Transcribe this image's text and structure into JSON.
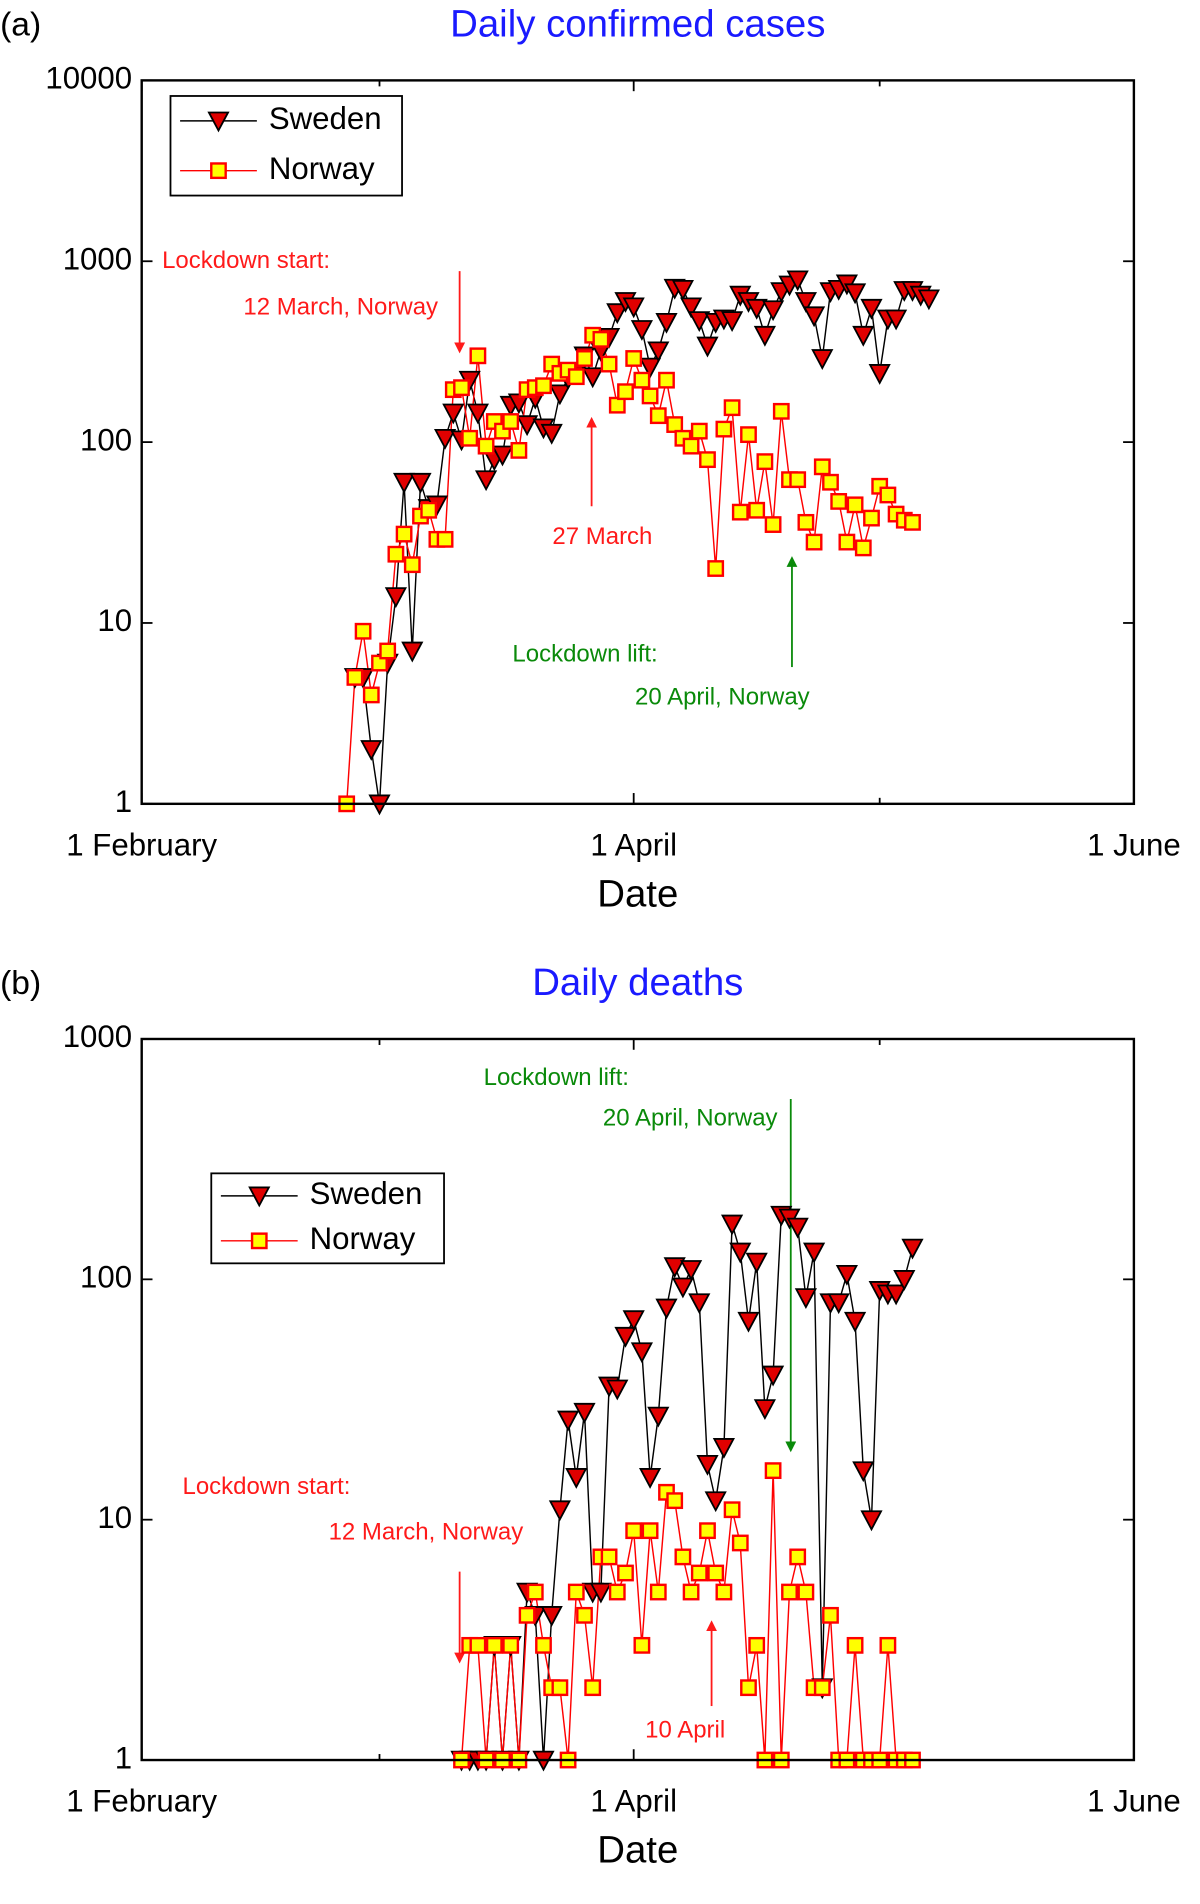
{
  "chart_data": [
    {
      "type": "line",
      "label": "(a)",
      "title": "Daily confirmed cases",
      "xlabel": "Date",
      "log_y": true,
      "legend": "upper left",
      "xlim": [
        "1 February",
        "1 June"
      ],
      "xticks": [
        "1 February",
        "1 April",
        "1 June"
      ],
      "xminor": [
        "1 March",
        "1 May"
      ],
      "ylim": [
        1,
        10000
      ],
      "yticks": [
        1,
        10,
        100,
        1000,
        10000
      ],
      "x": [
        "26 February",
        "27 February",
        "28 February",
        "29 February",
        "1 March",
        "2 March",
        "3 March",
        "4 March",
        "5 March",
        "6 March",
        "7 March",
        "8 March",
        "9 March",
        "10 March",
        "11 March",
        "12 March",
        "13 March",
        "14 March",
        "15 March",
        "16 March",
        "17 March",
        "18 March",
        "19 March",
        "20 March",
        "21 March",
        "22 March",
        "23 March",
        "24 March",
        "25 March",
        "26 March",
        "27 March",
        "28 March",
        "29 March",
        "30 March",
        "31 March",
        "1 April",
        "2 April",
        "3 April",
        "4 April",
        "5 April",
        "6 April",
        "7 April",
        "8 April",
        "9 April",
        "10 April",
        "11 April",
        "12 April",
        "13 April",
        "14 April",
        "15 April",
        "16 April",
        "17 April",
        "18 April",
        "19 April",
        "20 April",
        "21 April",
        "22 April",
        "23 April",
        "24 April",
        "25 April",
        "26 April",
        "27 April",
        "28 April",
        "29 April",
        "30 April",
        "1 May",
        "2 May",
        "3 May",
        "4 May",
        "5 May",
        "6 May",
        "7 May"
      ],
      "series": [
        {
          "name": "Sweden",
          "marker": "triangle-down",
          "color": "#000000",
          "marker_fill": "#e00000",
          "values": [
            null,
            5,
            5,
            2,
            1,
            6,
            14,
            60,
            7,
            60,
            43,
            45,
            105,
            145,
            103,
            220,
            145,
            62,
            80,
            85,
            160,
            165,
            125,
            175,
            120,
            112,
            185,
            225,
            240,
            300,
            230,
            320,
            380,
            520,
            600,
            560,
            420,
            260,
            320,
            460,
            710,
            700,
            560,
            470,
            340,
            460,
            480,
            470,
            650,
            600,
            550,
            390,
            540,
            680,
            740,
            790,
            600,
            500,
            290,
            680,
            700,
            750,
            670,
            390,
            550,
            240,
            480,
            480,
            690,
            690,
            650,
            620
          ]
        },
        {
          "name": "Norway",
          "marker": "square",
          "color": "#ff0000",
          "marker_fill": "#ffff00",
          "values": [
            1,
            5,
            9,
            4,
            6,
            7,
            24,
            31,
            21,
            39,
            42,
            29,
            29,
            195,
            200,
            105,
            300,
            95,
            130,
            115,
            130,
            90,
            195,
            200,
            205,
            270,
            240,
            250,
            230,
            290,
            390,
            370,
            270,
            160,
            190,
            290,
            220,
            180,
            140,
            220,
            125,
            105,
            95,
            115,
            80,
            20,
            118,
            155,
            41,
            110,
            42,
            78,
            35,
            148,
            62,
            62,
            36,
            28,
            73,
            60,
            47,
            28,
            45,
            26,
            38,
            57,
            51,
            40,
            37,
            36,
            null,
            null
          ]
        }
      ],
      "annotations": [
        "Lockdown start:",
        "12 March, Norway",
        "27 March",
        "Lockdown lift:",
        "20 April, Norway"
      ]
    },
    {
      "type": "line",
      "label": "(b)",
      "title": "Daily deaths",
      "xlabel": "Date",
      "log_y": true,
      "legend": "upper left",
      "xlim": [
        "1 February",
        "1 June"
      ],
      "xticks": [
        "1 February",
        "1 April",
        "1 June"
      ],
      "xminor": [
        "1 March",
        "1 May"
      ],
      "ylim": [
        1,
        1000
      ],
      "yticks": [
        1,
        10,
        100,
        1000
      ],
      "x": [
        "11 March",
        "12 March",
        "13 March",
        "14 March",
        "15 March",
        "16 March",
        "17 March",
        "18 March",
        "19 March",
        "20 March",
        "21 March",
        "22 March",
        "23 March",
        "24 March",
        "25 March",
        "26 March",
        "27 March",
        "28 March",
        "29 March",
        "30 March",
        "31 March",
        "1 April",
        "2 April",
        "3 April",
        "4 April",
        "5 April",
        "6 April",
        "7 April",
        "8 April",
        "9 April",
        "10 April",
        "11 April",
        "12 April",
        "13 April",
        "14 April",
        "15 April",
        "16 April",
        "17 April",
        "18 April",
        "19 April",
        "20 April",
        "21 April",
        "22 April",
        "23 April",
        "24 April",
        "25 April",
        "26 April",
        "27 April",
        "28 April",
        "29 April",
        "30 April",
        "1 May",
        "2 May",
        "3 May",
        "4 May",
        "5 May"
      ],
      "series": [
        {
          "name": "Sweden",
          "marker": "triangle-down",
          "color": "#000000",
          "marker_fill": "#e00000",
          "values": [
            1,
            1,
            1,
            1,
            3,
            1,
            3,
            1,
            5,
            4,
            1,
            4,
            11,
            26,
            15,
            28,
            5,
            5,
            36,
            35,
            58,
            68,
            50,
            15,
            27,
            76,
            113,
            93,
            110,
            80,
            17,
            12,
            20,
            170,
            130,
            67,
            118,
            29,
            40,
            185,
            180,
            165,
            84,
            130,
            2,
            80,
            80,
            105,
            67,
            16,
            10,
            90,
            87,
            87,
            100,
            135
          ]
        },
        {
          "name": "Norway",
          "marker": "square",
          "color": "#ff0000",
          "marker_fill": "#ffff00",
          "values": [
            1,
            3,
            3,
            1,
            3,
            1,
            3,
            1,
            4,
            5,
            3,
            2,
            2,
            1,
            5,
            4,
            2,
            7,
            7,
            5,
            6,
            9,
            3,
            9,
            5,
            13,
            12,
            7,
            5,
            6,
            9,
            6,
            5,
            11,
            8,
            2,
            3,
            1,
            16,
            1,
            5,
            7,
            5,
            2,
            2,
            4,
            1,
            1,
            3,
            1,
            1,
            1,
            3,
            1,
            1,
            1
          ]
        }
      ],
      "annotations": [
        "Lockdown lift:",
        "20 April, Norway",
        "Lockdown start:",
        "12 March, Norway",
        "10 April"
      ]
    }
  ]
}
